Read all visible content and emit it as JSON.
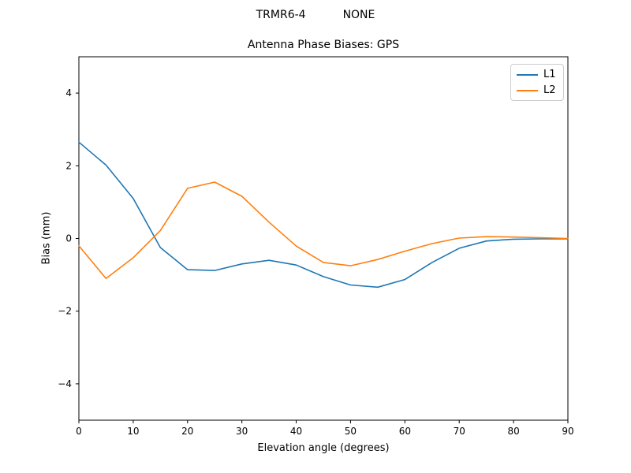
{
  "header": {
    "suptitle_left": "TRMR6-4",
    "suptitle_right": "NONE"
  },
  "chart_data": {
    "type": "line",
    "title": "Antenna Phase Biases: GPS",
    "xlabel": "Elevation angle (degrees)",
    "ylabel": "Bias (mm)",
    "xlim": [
      0,
      90
    ],
    "ylim": [
      -5,
      5
    ],
    "xticks": [
      0,
      10,
      20,
      30,
      40,
      50,
      60,
      70,
      80,
      90
    ],
    "yticks": [
      -4,
      -2,
      0,
      2,
      4
    ],
    "grid": false,
    "legend_position": "upper right",
    "x": [
      0,
      5,
      10,
      15,
      20,
      25,
      30,
      35,
      40,
      45,
      50,
      55,
      60,
      65,
      70,
      75,
      80,
      85,
      90
    ],
    "series": [
      {
        "name": "L1",
        "color": "#1f77b4",
        "values": [
          2.65,
          2.02,
          1.1,
          -0.25,
          -0.86,
          -0.88,
          -0.7,
          -0.6,
          -0.73,
          -1.05,
          -1.28,
          -1.34,
          -1.13,
          -0.66,
          -0.27,
          -0.07,
          -0.02,
          -0.01,
          -0.01
        ]
      },
      {
        "name": "L2",
        "color": "#ff7f0e",
        "values": [
          -0.2,
          -1.1,
          -0.53,
          0.22,
          1.38,
          1.55,
          1.16,
          0.45,
          -0.21,
          -0.66,
          -0.75,
          -0.58,
          -0.35,
          -0.14,
          0.01,
          0.05,
          0.04,
          0.02,
          0.0
        ]
      }
    ],
    "colors": {
      "axis": "#000000",
      "background": "#ffffff",
      "legend_border": "#cccccc"
    }
  }
}
